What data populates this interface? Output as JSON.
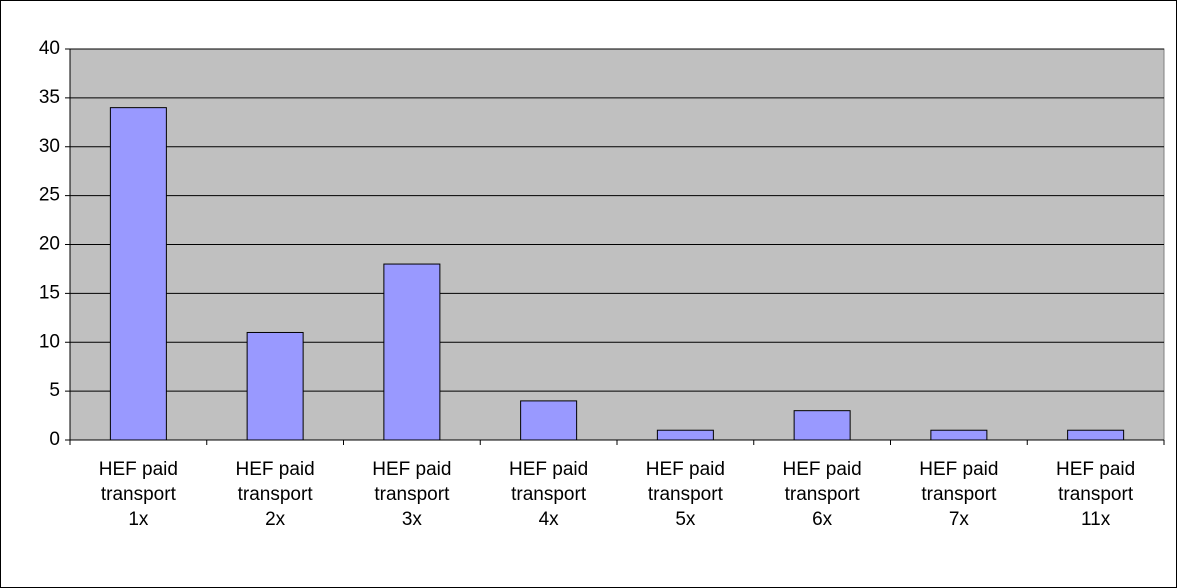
{
  "chart_data": {
    "type": "bar",
    "categories": [
      "HEF paid transport 1x",
      "HEF paid transport 2x",
      "HEF paid transport 3x",
      "HEF paid transport 4x",
      "HEF paid transport 5x",
      "HEF paid transport 6x",
      "HEF paid transport 7x",
      "HEF paid transport 11x"
    ],
    "values": [
      34,
      11,
      18,
      4,
      1,
      3,
      1,
      1
    ],
    "color": "#9999ff",
    "ylim": [
      0,
      40
    ],
    "yticks": [
      0,
      5,
      10,
      15,
      20,
      25,
      30,
      35,
      40
    ],
    "grid": true
  }
}
